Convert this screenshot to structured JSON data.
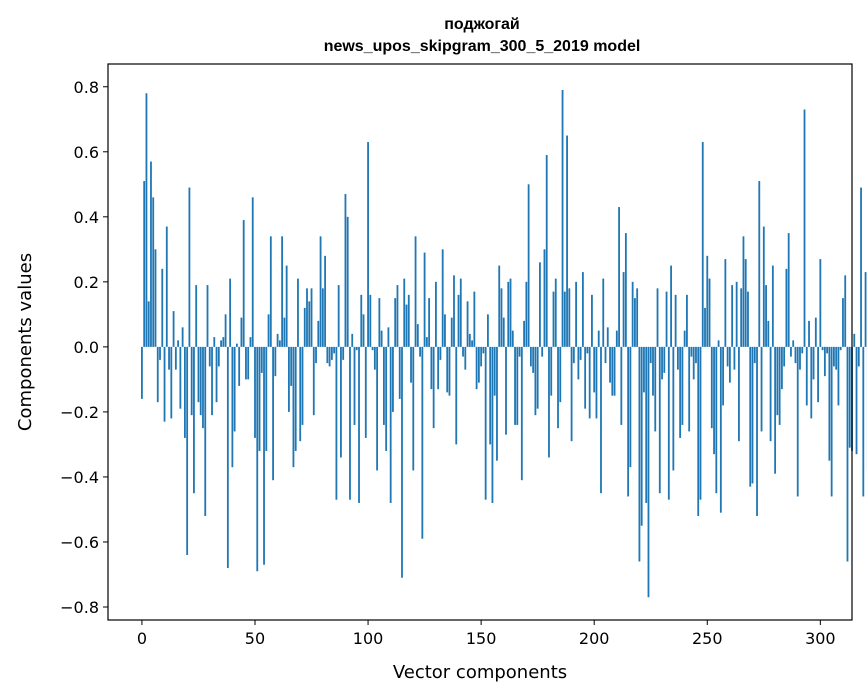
{
  "chart_data": {
    "type": "bar",
    "title": "поджогай",
    "subtitle": "news_upos_skipgram_300_5_2019 model",
    "xlabel": "Vector components",
    "ylabel": "Components values",
    "xlim": [
      -15,
      314
    ],
    "ylim": [
      -0.84,
      0.87
    ],
    "x_ticks": [
      0,
      50,
      100,
      150,
      200,
      250,
      300
    ],
    "x_tick_labels": [
      "0",
      "50",
      "100",
      "150",
      "200",
      "250",
      "300"
    ],
    "y_ticks": [
      -0.8,
      -0.6,
      -0.4,
      -0.2,
      0.0,
      0.2,
      0.4,
      0.6,
      0.8
    ],
    "y_tick_labels": [
      "−0.8",
      "−0.6",
      "−0.4",
      "−0.2",
      "0.0",
      "0.2",
      "0.4",
      "0.6",
      "0.8"
    ],
    "bar_color": "#1f77b4",
    "series": [
      {
        "name": "components",
        "values": [
          -0.16,
          0.51,
          0.78,
          0.14,
          0.57,
          0.46,
          0.3,
          -0.17,
          -0.04,
          0.24,
          -0.23,
          0.37,
          -0.07,
          -0.22,
          0.11,
          -0.07,
          0.02,
          -0.19,
          0.06,
          -0.28,
          -0.64,
          0.49,
          -0.21,
          -0.45,
          0.19,
          -0.17,
          -0.21,
          -0.25,
          -0.52,
          0.19,
          -0.06,
          -0.21,
          0.03,
          -0.17,
          -0.06,
          0.02,
          0.03,
          0.1,
          -0.68,
          0.21,
          -0.37,
          -0.26,
          0.01,
          -0.12,
          0.09,
          0.39,
          -0.1,
          -0.1,
          0.03,
          0.46,
          -0.28,
          -0.69,
          -0.32,
          -0.08,
          -0.67,
          -0.32,
          0.1,
          0.34,
          -0.41,
          -0.09,
          0.04,
          0.02,
          0.34,
          0.09,
          0.25,
          -0.2,
          -0.12,
          -0.37,
          -0.32,
          0.21,
          -0.29,
          -0.24,
          0.12,
          0.18,
          0.14,
          0.18,
          -0.21,
          -0.05,
          0.08,
          0.34,
          0.18,
          0.28,
          -0.05,
          -0.06,
          -0.04,
          -0.02,
          -0.47,
          0.19,
          -0.34,
          -0.04,
          0.47,
          0.4,
          -0.47,
          0.04,
          -0.24,
          -0.01,
          -0.48,
          0.16,
          0.1,
          -0.28,
          0.63,
          0.16,
          -0.01,
          -0.07,
          -0.38,
          0.15,
          0.05,
          -0.24,
          -0.32,
          0.06,
          -0.48,
          -0.2,
          0.15,
          0.19,
          -0.16,
          -0.71,
          0.21,
          0.13,
          0.16,
          -0.11,
          -0.38,
          0.34,
          0.07,
          -0.03,
          -0.59,
          0.29,
          0.03,
          0.15,
          -0.13,
          -0.25,
          0.2,
          -0.13,
          -0.04,
          0.3,
          0.1,
          -0.14,
          -0.15,
          0.09,
          0.22,
          -0.3,
          0.16,
          0.21,
          -0.03,
          -0.07,
          0.14,
          0.04,
          0.02,
          0.17,
          -0.13,
          -0.11,
          -0.06,
          -0.02,
          -0.47,
          0.1,
          -0.3,
          -0.48,
          -0.15,
          -0.35,
          0.25,
          0.18,
          0.09,
          -0.27,
          0.2,
          0.21,
          0.05,
          -0.24,
          -0.24,
          -0.03,
          -0.41,
          0.08,
          0.2,
          0.5,
          -0.06,
          -0.08,
          -0.21,
          -0.19,
          0.26,
          -0.03,
          0.3,
          0.59,
          -0.34,
          -0.15,
          0.17,
          0.21,
          -0.25,
          -0.17,
          0.79,
          0.17,
          0.65,
          0.18,
          -0.29,
          -0.05,
          0.2,
          -0.1,
          -0.04,
          0.23,
          -0.19,
          -0.02,
          -0.22,
          0.16,
          -0.14,
          -0.22,
          0.05,
          -0.45,
          0.21,
          -0.05,
          0.06,
          -0.11,
          -0.15,
          -0.15,
          0.05,
          0.43,
          -0.24,
          0.23,
          0.35,
          -0.46,
          -0.37,
          0.2,
          0.15,
          0.18,
          -0.66,
          -0.55,
          -0.14,
          -0.48,
          -0.77,
          -0.05,
          -0.15,
          -0.26,
          0.18,
          -0.45,
          -0.1,
          -0.08,
          0.17,
          -0.47,
          0.25,
          -0.38,
          0.16,
          -0.07,
          -0.28,
          -0.24,
          0.05,
          0.16,
          -0.26,
          -0.03,
          -0.1,
          -0.05,
          -0.52,
          -0.47,
          0.63,
          0.12,
          0.28,
          0.21,
          -0.25,
          -0.33,
          -0.45,
          0.02,
          -0.51,
          -0.18,
          0.27,
          -0.06,
          -0.11,
          0.19,
          -0.07,
          0.2,
          -0.29,
          0.18,
          0.34,
          0.27,
          0.17,
          -0.43,
          -0.42,
          -0.05,
          -0.52,
          0.51,
          -0.26,
          0.37,
          0.19,
          0.08,
          -0.29,
          0.25,
          -0.39,
          -0.21,
          -0.24,
          -0.13,
          -0.06,
          0.24,
          0.35,
          -0.03,
          0.02,
          -0.05,
          -0.46,
          -0.07,
          -0.02,
          0.73,
          -0.18,
          0.08,
          -0.22,
          -0.1,
          0.09,
          -0.17,
          0.27,
          -0.01,
          -0.09,
          -0.02,
          -0.35,
          -0.46,
          -0.06,
          -0.07,
          -0.18,
          -0.01,
          0.15,
          0.22,
          -0.66,
          -0.31,
          -0.32,
          0.04,
          -0.33,
          -0.06,
          0.49,
          -0.46,
          0.23,
          -0.38
        ]
      }
    ]
  }
}
